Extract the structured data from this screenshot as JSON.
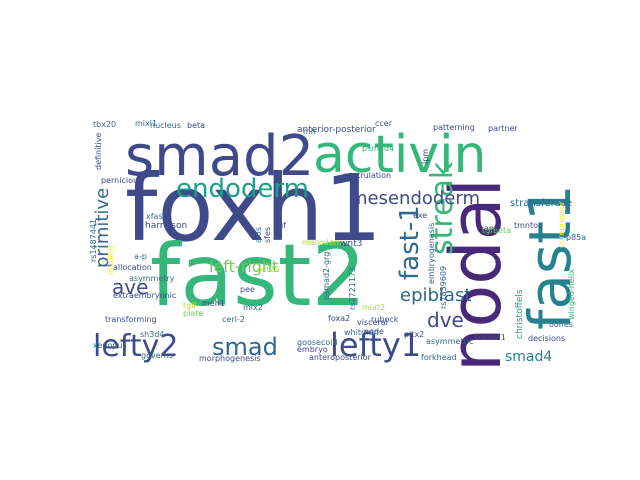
{
  "wordcloud": {
    "palette": {
      "dark_purple": "#482878",
      "indigo": "#3e4a89",
      "blue": "#31688e",
      "teal": "#26828e",
      "sea_green": "#1f9e89",
      "green": "#35b779",
      "light_green": "#6ece58",
      "lime": "#b5de2b",
      "yellow": "#fde725",
      "deep_purple": "#440154"
    },
    "words": [
      {
        "id": "foxh1",
        "text": "foxh1",
        "color": "#3e4a89"
      },
      {
        "id": "fast2",
        "text": "fast2",
        "color": "#35b779"
      },
      {
        "id": "smad2",
        "text": "smad2",
        "color": "#3e4a89"
      },
      {
        "id": "activin",
        "text": "activin",
        "color": "#35b779"
      },
      {
        "id": "nodal",
        "text": "nodal",
        "color": "#482878"
      },
      {
        "id": "fast1",
        "text": "fast1",
        "color": "#26828e"
      },
      {
        "id": "endoderm",
        "text": "endoderm",
        "color": "#1f9e89"
      },
      {
        "id": "lefty2",
        "text": "lefty2",
        "color": "#3e4a89"
      },
      {
        "id": "lefty1",
        "text": "lefty1",
        "color": "#3e4a89"
      },
      {
        "id": "smad",
        "text": "smad",
        "color": "#31688e"
      },
      {
        "id": "fast-1",
        "text": "fast-1",
        "color": "#31688e"
      },
      {
        "id": "streak",
        "text": "streak",
        "color": "#35b779"
      },
      {
        "id": "mesendoderm",
        "text": "mesendoderm",
        "color": "#3e4a89"
      },
      {
        "id": "primitive",
        "text": "primitive",
        "color": "#31688e"
      },
      {
        "id": "left-right",
        "text": "left-right",
        "color": "#6ece58"
      },
      {
        "id": "ave",
        "text": "ave",
        "color": "#3e4a89"
      },
      {
        "id": "epiblast",
        "text": "epiblast",
        "color": "#31688e"
      },
      {
        "id": "dve",
        "text": "dve",
        "color": "#3e4a89"
      },
      {
        "id": "smad4",
        "text": "smad4",
        "color": "#26828e"
      },
      {
        "id": "stransferase",
        "text": "stransferase",
        "color": "#31688e"
      },
      {
        "id": "anterior-posterior",
        "text": "anterior-posterior",
        "color": "#3e4a89"
      },
      {
        "id": "gastrulation",
        "text": "gastrulation",
        "color": "#3e4a89"
      },
      {
        "id": "mesoderm",
        "text": "mesoderm",
        "color": "#b5de2b"
      },
      {
        "id": "psmad2-grg",
        "text": "psmad2-grg",
        "color": "#31688e"
      },
      {
        "id": "wnt3",
        "text": "wnt3",
        "color": "#3e4a89"
      },
      {
        "id": "rs2721173",
        "text": "rs2721173",
        "color": "#31688e"
      },
      {
        "id": "rs7839609",
        "text": "rs7839609",
        "color": "#31688e"
      },
      {
        "id": "embryogenesis",
        "text": "embryogenesis",
        "color": "#31688e"
      },
      {
        "id": "christoffels",
        "text": "christoffels",
        "color": "#1f9e89"
      },
      {
        "id": "winged-helix",
        "text": "winged-helix",
        "color": "#35b779"
      },
      {
        "id": "p85a",
        "text": "p85a",
        "color": "#31688e"
      },
      {
        "id": "corepressor",
        "text": "corepressor",
        "color": "#fde725"
      },
      {
        "id": "tmntop",
        "text": "tmntop",
        "color": "#3e4a89"
      },
      {
        "id": "tgfbeta",
        "text": "tgfbeta",
        "color": "#6ece58"
      },
      {
        "id": "aps",
        "text": "aps",
        "color": "#3e4a89"
      },
      {
        "id": "exe",
        "text": "exe",
        "color": "#3e4a89"
      },
      {
        "id": "harrelson",
        "text": "harrelson",
        "color": "#3e4a89"
      },
      {
        "id": "xfast",
        "text": "xfast",
        "color": "#31688e"
      },
      {
        "id": "rs1487441",
        "text": "rs1487441",
        "color": "#31688e"
      },
      {
        "id": "midline",
        "text": "midline",
        "color": "#fde725"
      },
      {
        "id": "a-p",
        "text": "a-p",
        "color": "#31688e"
      },
      {
        "id": "allocation",
        "text": "allocation",
        "color": "#3e4a89"
      },
      {
        "id": "asymmetry",
        "text": "asymmetry",
        "color": "#31688e"
      },
      {
        "id": "extraembryonic",
        "text": "extraembryonic",
        "color": "#3e4a89"
      },
      {
        "id": "transforming",
        "text": "transforming",
        "color": "#3e4a89"
      },
      {
        "id": "sh3d4",
        "text": "sh3d4",
        "color": "#31688e"
      },
      {
        "id": "xenopus",
        "text": "xenopus",
        "color": "#31688e"
      },
      {
        "id": "governs",
        "text": "governs",
        "color": "#31688e"
      },
      {
        "id": "morphogenesis",
        "text": "morphogenesis",
        "color": "#3e4a89"
      },
      {
        "id": "goosecoid",
        "text": "goosecoid",
        "color": "#31688e"
      },
      {
        "id": "embryo",
        "text": "embryo",
        "color": "#3e4a89"
      },
      {
        "id": "anteroposterior",
        "text": "anteroposterior",
        "color": "#3e4a89"
      },
      {
        "id": "visceral",
        "text": "visceral",
        "color": "#3e4a89"
      },
      {
        "id": "asymmetric",
        "text": "asymmetric",
        "color": "#31688e"
      },
      {
        "id": "pitx2",
        "text": "pitx2",
        "color": "#3e4a89"
      },
      {
        "id": "kncma1",
        "text": "kncma1",
        "color": "#3e4a89"
      },
      {
        "id": "forkhead",
        "text": "forkhead",
        "color": "#31688e"
      },
      {
        "id": "decisions",
        "text": "decisions",
        "color": "#3e4a89"
      },
      {
        "id": "oones",
        "text": "oones",
        "color": "#31688e"
      },
      {
        "id": "foxa2",
        "text": "foxa2",
        "color": "#3e4a89"
      },
      {
        "id": "cerl-2",
        "text": "cerl-2",
        "color": "#31688e"
      },
      {
        "id": "meh1",
        "text": "meh1",
        "color": "#3e4a89"
      },
      {
        "id": "mix2",
        "text": "mix2",
        "color": "#31688e"
      },
      {
        "id": "whitman",
        "text": "whitman",
        "color": "#31688e"
      },
      {
        "id": "node",
        "text": "node",
        "color": "#3e4a89"
      },
      {
        "id": "rubock",
        "text": "rubock",
        "color": "#3e4a89"
      },
      {
        "id": "patterning",
        "text": "patterning",
        "color": "#3e4a89"
      },
      {
        "id": "partner",
        "text": "partner",
        "color": "#3e4a89"
      },
      {
        "id": "ccer",
        "text": "ccer",
        "color": "#3e4a89"
      },
      {
        "id": "tbx20",
        "text": "tbx20",
        "color": "#31688e"
      },
      {
        "id": "mixl1",
        "text": "mixl1",
        "color": "#31688e"
      },
      {
        "id": "nucleus",
        "text": "nucleus",
        "color": "#31688e"
      },
      {
        "id": "beta",
        "text": "beta",
        "color": "#3e4a89"
      },
      {
        "id": "definitive",
        "text": "definitive",
        "color": "#3e4a89"
      },
      {
        "id": "pernicious",
        "text": "pernicious",
        "color": "#3e4a89"
      },
      {
        "id": "mh",
        "text": "mh",
        "color": "#31688e"
      },
      {
        "id": "psmad4",
        "text": "psmad4",
        "color": "#35b779"
      },
      {
        "id": "lpm",
        "text": "lpm",
        "color": "#3e4a89"
      },
      {
        "id": "tgf",
        "text": "tgf",
        "color": "#3e4a89"
      },
      {
        "id": "oct25",
        "text": "oct25",
        "color": "#b5de2b"
      },
      {
        "id": "axis",
        "text": "axis",
        "color": "#31688e"
      },
      {
        "id": "sfes",
        "text": "sfes",
        "color": "#3e4a89"
      },
      {
        "id": "pee",
        "text": "pee",
        "color": "#3e4a89"
      },
      {
        "id": "plate",
        "text": "plate",
        "color": "#6ece58"
      },
      {
        "id": "miat2",
        "text": "miat2",
        "color": "#b5de2b"
      },
      {
        "id": "tgif",
        "text": "tgif",
        "color": "#b5de2b"
      }
    ]
  }
}
